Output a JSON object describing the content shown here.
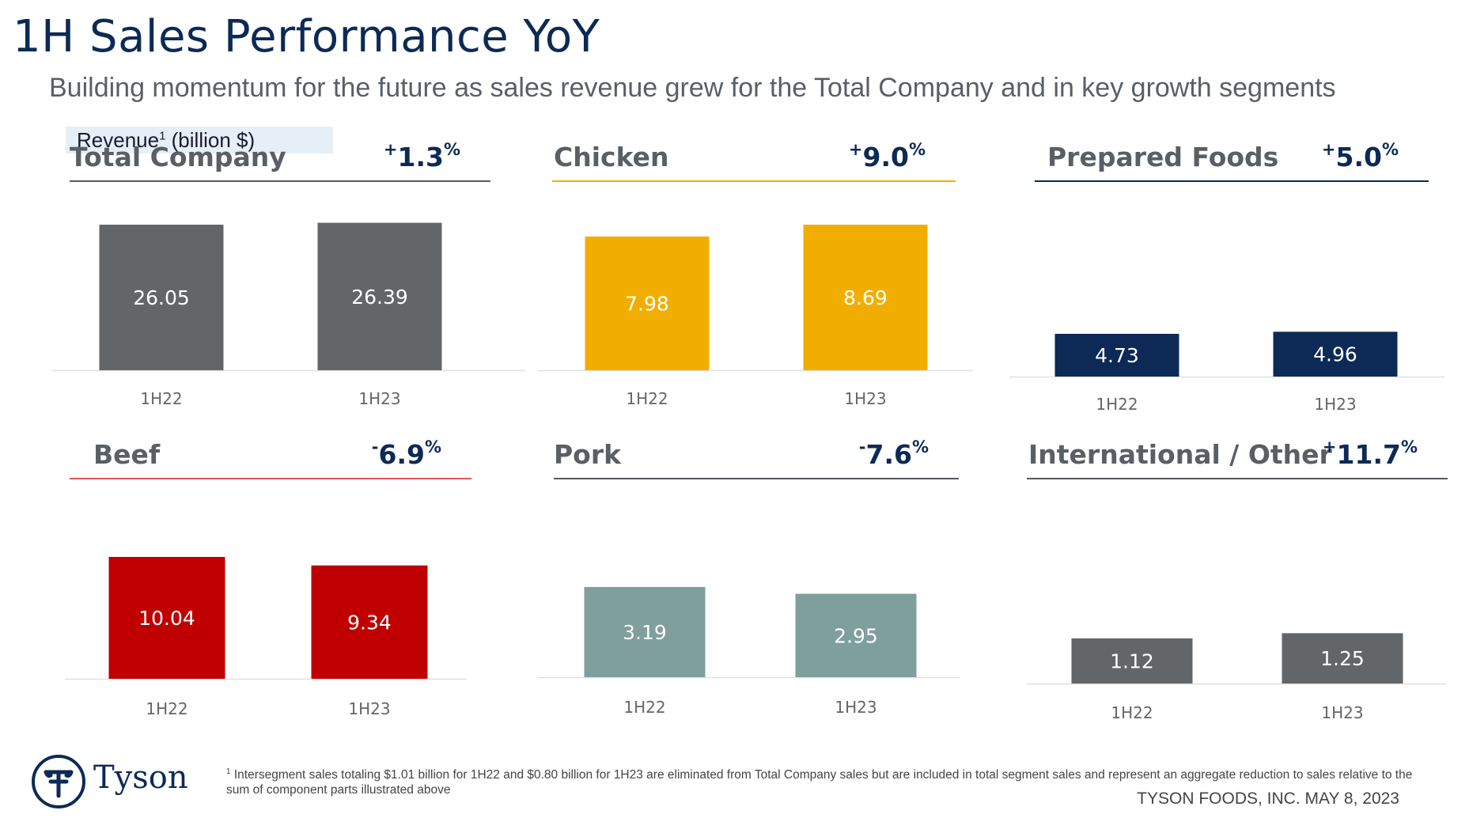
{
  "title": "1H Sales Performance YoY",
  "subtitle": "Building momentum for the future as sales revenue grew for the Total Company and in key growth segments",
  "revenue_label": {
    "text": "Revenue",
    "sup": "1",
    "unit": " (billion $)"
  },
  "colors": {
    "total": "#636668",
    "chicken": "#f2ae00",
    "prepared": "#0c2a55",
    "beef": "#c00000",
    "pork": "#7f9f9c",
    "international": "#636668",
    "change_text": "#0c2a55"
  },
  "chart_data": [
    {
      "type": "bar",
      "title": "Total Company",
      "change": {
        "sign": "+",
        "value": "1.3",
        "unit": "%"
      },
      "categories": [
        "1H22",
        "1H23"
      ],
      "values": [
        26.05,
        26.39
      ],
      "value_labels": [
        "26.05",
        "26.39"
      ],
      "color": "#636668",
      "ylim": [
        0,
        26.39
      ]
    },
    {
      "type": "bar",
      "title": "Chicken",
      "change": {
        "sign": "+",
        "value": "9.0",
        "unit": "%"
      },
      "categories": [
        "1H22",
        "1H23"
      ],
      "values": [
        7.98,
        8.69
      ],
      "value_labels": [
        "7.98",
        "8.69"
      ],
      "color": "#f2ae00",
      "ylim": [
        0,
        8.69
      ]
    },
    {
      "type": "bar",
      "title": "Prepared Foods",
      "change": {
        "sign": "+",
        "value": "5.0",
        "unit": "%"
      },
      "categories": [
        "1H22",
        "1H23"
      ],
      "values": [
        4.73,
        4.96
      ],
      "value_labels": [
        "4.73",
        "4.96"
      ],
      "color": "#0c2a55",
      "ylim": [
        0,
        15
      ]
    },
    {
      "type": "bar",
      "title": "Beef",
      "change": {
        "sign": "-",
        "value": "6.9",
        "unit": "%"
      },
      "categories": [
        "1H22",
        "1H23"
      ],
      "values": [
        10.04,
        9.34
      ],
      "value_labels": [
        "10.04",
        "9.34"
      ],
      "color": "#c00000",
      "ylim": [
        0,
        15
      ]
    },
    {
      "type": "bar",
      "title": "Pork",
      "change": {
        "sign": "-",
        "value": "7.6",
        "unit": "%"
      },
      "categories": [
        "1H22",
        "1H23"
      ],
      "values": [
        3.19,
        2.95
      ],
      "value_labels": [
        "3.19",
        "2.95"
      ],
      "color": "#7f9f9c",
      "ylim": [
        0,
        8
      ]
    },
    {
      "type": "bar",
      "title": "International / Other",
      "change": {
        "sign": "+",
        "value": "11.7",
        "unit": "%"
      },
      "categories": [
        "1H22",
        "1H23"
      ],
      "values": [
        1.12,
        1.25
      ],
      "value_labels": [
        "1.12",
        "1.25"
      ],
      "color": "#636668",
      "ylim": [
        0,
        5
      ]
    }
  ],
  "footnote": {
    "sup": "1",
    "text": "Intersegment sales totaling $1.01 billion for 1H22 and $0.80 billion for 1H23 are eliminated from Total Company sales but are included in total segment sales and represent an aggregate reduction to sales relative to the sum of component parts illustrated above"
  },
  "footer_right": "TYSON FOODS, INC. MAY 8, 2023",
  "logo": {
    "icon": "tyson-logo-icon",
    "text": "Tyson"
  }
}
